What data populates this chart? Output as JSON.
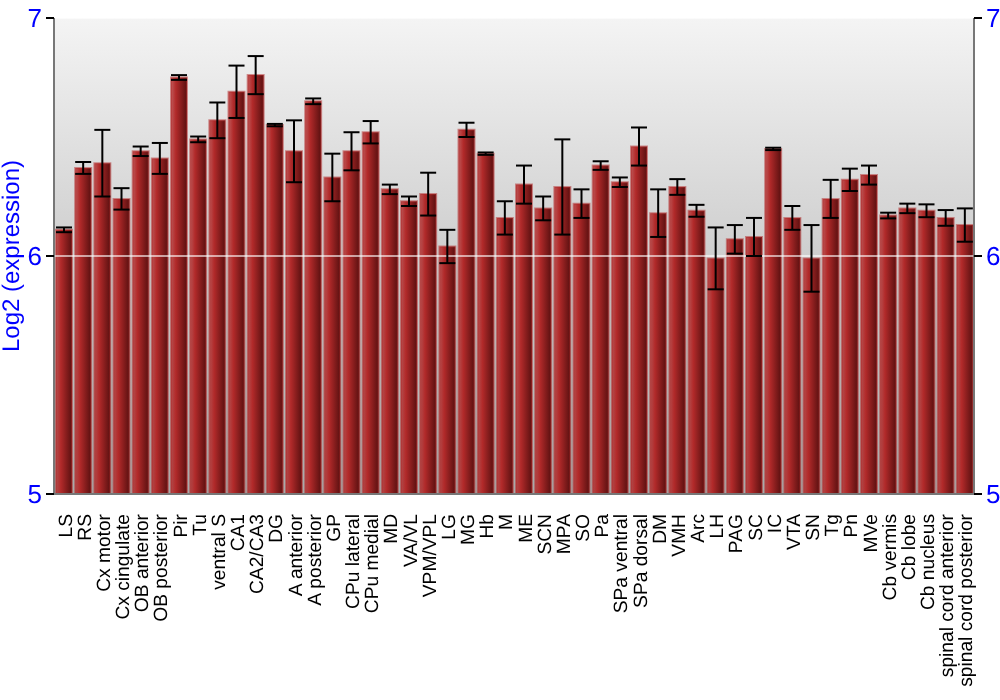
{
  "chart_data": {
    "type": "bar",
    "ylabel": "Log2 (expression)",
    "categories": [
      "LS",
      "RS",
      "Cx motor",
      "Cx cingulate",
      "OB anterior",
      "OB posterior",
      "Pir",
      "Tu",
      "ventral S",
      "CA1",
      "CA2/CA3",
      "DG",
      "A anterior",
      "A posterior",
      "GP",
      "CPu lateral",
      "CPu medial",
      "MD",
      "VA/VL",
      "VPM/VPL",
      "LG",
      "MG",
      "Hb",
      "M",
      "ME",
      "SCN",
      "MPA",
      "SO",
      "Pa",
      "SPa ventral",
      "SPa dorsal",
      "DM",
      "VMH",
      "Arc",
      "LH",
      "PAG",
      "SC",
      "IC",
      "VTA",
      "SN",
      "Tg",
      "Pn",
      "MVe",
      "Cb vermis",
      "Cb lobe",
      "Cb nucleus",
      "spinal cord anterior",
      "spinal cord posterior"
    ],
    "values": [
      6.11,
      6.37,
      6.39,
      6.24,
      6.44,
      6.41,
      6.75,
      6.49,
      6.57,
      6.69,
      6.76,
      6.55,
      6.44,
      6.65,
      6.33,
      6.44,
      6.52,
      6.28,
      6.23,
      6.26,
      6.04,
      6.53,
      6.43,
      6.16,
      6.3,
      6.2,
      6.29,
      6.22,
      6.38,
      6.31,
      6.46,
      6.18,
      6.29,
      6.19,
      5.99,
      6.07,
      6.08,
      6.45,
      6.16,
      5.99,
      6.24,
      6.32,
      6.34,
      6.17,
      6.2,
      6.19,
      6.16,
      6.13
    ],
    "errors": [
      0.01,
      0.025,
      0.14,
      0.045,
      0.02,
      0.065,
      0.01,
      0.012,
      0.075,
      0.11,
      0.08,
      0.005,
      0.13,
      0.012,
      0.1,
      0.08,
      0.047,
      0.02,
      0.02,
      0.09,
      0.07,
      0.03,
      0.005,
      0.07,
      0.08,
      0.05,
      0.2,
      0.06,
      0.018,
      0.02,
      0.08,
      0.1,
      0.033,
      0.025,
      0.13,
      0.06,
      0.08,
      0.005,
      0.05,
      0.14,
      0.08,
      0.047,
      0.04,
      0.012,
      0.02,
      0.027,
      0.033,
      0.07
    ],
    "color": "#b22a2a",
    "ylim": [
      5,
      7
    ],
    "yticks": [
      5,
      6,
      7
    ],
    "y2lim": [
      5,
      7
    ],
    "y2ticks": [
      5,
      6,
      7
    ],
    "grid": "y"
  }
}
